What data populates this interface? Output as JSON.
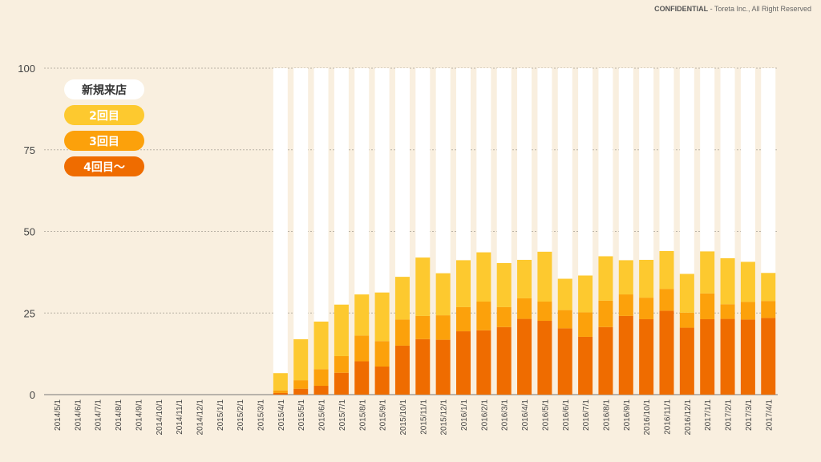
{
  "confidential": {
    "label": "CONFIDENTIAL",
    "text": " - Toreta Inc., All Right Reserved"
  },
  "legend": {
    "new_store": "新規来店",
    "visit2": "2回目",
    "visit3": "3回目",
    "visit4plus": "4回目〜"
  },
  "colors": {
    "new_store": "#ffffff",
    "visit2": "#fdc92f",
    "visit3": "#fca10b",
    "visit4plus": "#ef6c00",
    "background": "#f9efdf"
  },
  "chart_data": {
    "type": "bar",
    "stacked": true,
    "title": "",
    "xlabel": "",
    "ylabel": "",
    "ylim": [
      0,
      100
    ],
    "yticks": [
      0,
      25,
      50,
      75,
      100
    ],
    "categories": [
      "2014/5/1",
      "2014/6/1",
      "2014/7/1",
      "2014/8/1",
      "2014/9/1",
      "2014/10/1",
      "2014/11/1",
      "2014/12/1",
      "2015/1/1",
      "2015/2/1",
      "2015/3/1",
      "2015/4/1",
      "2015/5/1",
      "2015/6/1",
      "2015/7/1",
      "2015/8/1",
      "2015/9/1",
      "2015/10/1",
      "2015/11/1",
      "2015/12/1",
      "2016/1/1",
      "2016/2/1",
      "2016/3/1",
      "2016/4/1",
      "2016/5/1",
      "2016/6/1",
      "2016/7/1",
      "2016/8/1",
      "2016/9/1",
      "2016/10/1",
      "2016/11/1",
      "2016/12/1",
      "2017/1/1",
      "2017/2/1",
      "2017/3/1",
      "2017/4/1"
    ],
    "series": [
      {
        "name": "4回目〜",
        "values": [
          0,
          0,
          0,
          0,
          0,
          0,
          0,
          0,
          0,
          0,
          0,
          0.5,
          1.8,
          2.7,
          6.7,
          10.2,
          8.6,
          15,
          17,
          16.8,
          19.4,
          19.7,
          20.7,
          23.2,
          22.6,
          20.3,
          17.7,
          20.7,
          24.1,
          23.1,
          25.7,
          20.5,
          23.1,
          23.2,
          23,
          23.5
        ]
      },
      {
        "name": "3回目",
        "values": [
          0,
          0,
          0,
          0,
          0,
          0,
          0,
          0,
          0,
          0,
          0,
          0.8,
          2.6,
          5.1,
          5.1,
          7.9,
          7.8,
          8,
          7.1,
          7.5,
          7.4,
          8.8,
          6.1,
          6.3,
          5.9,
          5.6,
          7.5,
          8.1,
          6.6,
          6.6,
          6.7,
          4.6,
          7.9,
          4.5,
          5.4,
          5.2
        ]
      },
      {
        "name": "2回目",
        "values": [
          0,
          0,
          0,
          0,
          0,
          0,
          0,
          0,
          0,
          0,
          0,
          5.3,
          12.6,
          14.6,
          15.8,
          12.6,
          14.9,
          13.1,
          17.9,
          12.9,
          14.4,
          15.1,
          13.5,
          11.8,
          15.3,
          9.6,
          11.3,
          13.6,
          10.5,
          11.6,
          11.6,
          11.9,
          12.9,
          14.1,
          12.3,
          8.6
        ]
      },
      {
        "name": "新規来店",
        "values": [
          0,
          0,
          0,
          0,
          0,
          0,
          0,
          0,
          0,
          0,
          0,
          93.4,
          83,
          77.6,
          72.4,
          69.3,
          68.7,
          63.9,
          58,
          62.8,
          58.8,
          56.4,
          59.7,
          58.7,
          56.2,
          64.5,
          63.5,
          57.6,
          58.8,
          58.7,
          56,
          63,
          56.1,
          58.2,
          59.3,
          62.7
        ]
      }
    ],
    "grid": true,
    "legend_position": "top-left"
  }
}
